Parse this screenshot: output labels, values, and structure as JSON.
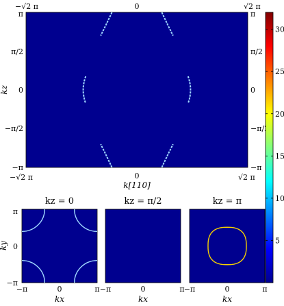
{
  "chart_data": [
    {
      "type": "heatmap",
      "panel": "main",
      "xlabel": "k[110]",
      "ylabel": "kz",
      "x_ticks": [
        "−√2 π",
        "0",
        "√2 π"
      ],
      "x_ticks_top": [
        "−√2 π",
        "0",
        "√2 π"
      ],
      "y_ticks": [
        "π",
        "π/2",
        "0",
        "−π/2",
        "−π"
      ],
      "xlim": [
        -4.4429,
        4.4429
      ],
      "ylim": [
        -3.1416,
        3.1416
      ],
      "background_value": 0,
      "features": [
        {
          "name": "arc",
          "points": [
            [
              -1.0,
              3.14
            ],
            [
              -1.25,
              2.6
            ],
            [
              -1.45,
              2.2
            ]
          ],
          "value": 12
        },
        {
          "name": "arc",
          "points": [
            [
              1.0,
              3.14
            ],
            [
              1.25,
              2.6
            ],
            [
              1.45,
              2.2
            ]
          ],
          "value": 12
        },
        {
          "name": "arc",
          "points": [
            [
              -1.0,
              -3.14
            ],
            [
              -1.25,
              -2.6
            ],
            [
              -1.45,
              -2.2
            ]
          ],
          "value": 12
        },
        {
          "name": "arc",
          "points": [
            [
              1.0,
              -3.14
            ],
            [
              1.25,
              -2.6
            ],
            [
              1.45,
              -2.2
            ]
          ],
          "value": 12
        },
        {
          "name": "arc",
          "points": [
            [
              -2.05,
              0.55
            ],
            [
              -2.25,
              0.0
            ],
            [
              -2.05,
              -0.55
            ]
          ],
          "value": 12
        },
        {
          "name": "arc",
          "points": [
            [
              2.05,
              0.55
            ],
            [
              2.25,
              0.0
            ],
            [
              2.05,
              -0.55
            ]
          ],
          "value": 12
        }
      ]
    },
    {
      "type": "heatmap",
      "panel": "kz0",
      "title": "kz = 0",
      "xlabel": "kx",
      "ylabel": "ky",
      "x_ticks": [
        "−π",
        "0",
        "π"
      ],
      "y_ticks": [
        "π",
        "0",
        "−π"
      ],
      "xlim": [
        -3.1416,
        3.1416
      ],
      "ylim": [
        -3.1416,
        3.1416
      ],
      "features": [
        {
          "name": "corner-arc",
          "center": [
            -3.1416,
            3.1416
          ],
          "radius": 1.9,
          "value": 10
        },
        {
          "name": "corner-arc",
          "center": [
            3.1416,
            3.1416
          ],
          "radius": 1.9,
          "value": 10
        },
        {
          "name": "corner-arc",
          "center": [
            -3.1416,
            -3.1416
          ],
          "radius": 1.9,
          "value": 10
        },
        {
          "name": "corner-arc",
          "center": [
            3.1416,
            -3.1416
          ],
          "radius": 1.9,
          "value": 10
        }
      ]
    },
    {
      "type": "heatmap",
      "panel": "kzpi2",
      "title": "kz = π/2",
      "xlabel": "kx",
      "x_ticks": [
        "−π",
        "0",
        "π"
      ],
      "xlim": [
        -3.1416,
        3.1416
      ],
      "ylim": [
        -3.1416,
        3.1416
      ],
      "features": []
    },
    {
      "type": "heatmap",
      "panel": "kzpi",
      "title": "kz = π",
      "xlabel": "kx",
      "x_ticks": [
        "−π",
        "0",
        "π"
      ],
      "xlim": [
        -3.1416,
        3.1416
      ],
      "ylim": [
        -3.1416,
        3.1416
      ],
      "features": [
        {
          "name": "closed-loop",
          "center": [
            0,
            0
          ],
          "radius": 1.6,
          "value": 10
        }
      ]
    }
  ],
  "colorbar": {
    "range": [
      0,
      32
    ],
    "ticks": [
      "5",
      "10",
      "15",
      "20",
      "25",
      "30"
    ],
    "tick_values": [
      5,
      10,
      15,
      20,
      25,
      30
    ],
    "colormap": "jet"
  },
  "colors": {
    "background": "#00008f",
    "feature": "#9fd6ff"
  }
}
